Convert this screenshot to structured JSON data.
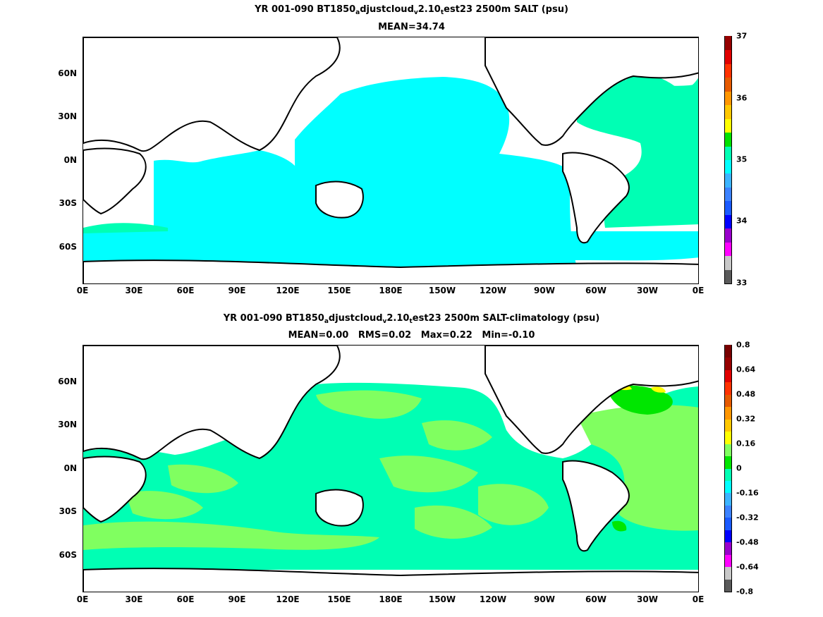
{
  "chart_data": [
    {
      "type": "heatmap",
      "title_line1": {
        "pre": "YR 001-090 BT1850",
        "sub1": "a",
        "mid1": "djustcloud",
        "sub2": "v",
        "mid2": "2.10",
        "sub3": "t",
        "post": "est23 2500m SALT (psu)"
      },
      "title_line2": "MEAN=34.74",
      "x_tick_labels": [
        "0E",
        "30E",
        "60E",
        "90E",
        "120E",
        "150E",
        "180E",
        "150W",
        "120W",
        "90W",
        "60W",
        "30W",
        "0E"
      ],
      "y_tick_labels": [
        "60N",
        "30N",
        "0N",
        "30S",
        "60S"
      ],
      "colorbar": {
        "range": [
          33,
          37
        ],
        "tick_labels": [
          "33",
          "34",
          "35",
          "36",
          "37"
        ],
        "colors": [
          "#5a5a5a",
          "#c8c8c8",
          "#ff00ff",
          "#9900cc",
          "#0000ff",
          "#1a5aff",
          "#3c82ff",
          "#3cb4ff",
          "#00ffff",
          "#00ffb4",
          "#00e100",
          "#ffff00",
          "#ffc800",
          "#ff9600",
          "#e65a00",
          "#ff3200",
          "#e10000",
          "#960000"
        ]
      },
      "mean_salinity": 34.74
    },
    {
      "type": "heatmap",
      "title_line1": {
        "pre": "YR 001-090 BT1850",
        "sub1": "a",
        "mid1": "djustcloud",
        "sub2": "v",
        "mid2": "2.10",
        "sub3": "t",
        "post": "est23 2500m SALT-climatology (psu)"
      },
      "title_line2": "MEAN=0.00   RMS=0.02   Max=0.22   Min=-0.10",
      "x_tick_labels": [
        "0E",
        "30E",
        "60E",
        "90E",
        "120E",
        "150E",
        "180E",
        "150W",
        "120W",
        "90W",
        "60W",
        "30W",
        "0E"
      ],
      "y_tick_labels": [
        "60N",
        "30N",
        "0N",
        "30S",
        "60S"
      ],
      "colorbar": {
        "range": [
          -0.8,
          0.8
        ],
        "tick_labels": [
          "-0.8",
          "-0.64",
          "-0.48",
          "-0.32",
          "-0.16",
          "0",
          "0.16",
          "0.32",
          "0.48",
          "0.64",
          "0.8"
        ],
        "colors": [
          "#5a5a5a",
          "#c8c8c8",
          "#ff00ff",
          "#9900cc",
          "#0000ff",
          "#1a5aff",
          "#3c82ff",
          "#3cb4ff",
          "#00ffff",
          "#00ffb4",
          "#00e600",
          "#80ff60",
          "#ffff00",
          "#ffc800",
          "#ff9600",
          "#e65a00",
          "#ff3200",
          "#e10000",
          "#960000",
          "#780000"
        ]
      },
      "stats": {
        "mean": 0.0,
        "rms": 0.02,
        "max": 0.22,
        "min": -0.1
      }
    }
  ]
}
